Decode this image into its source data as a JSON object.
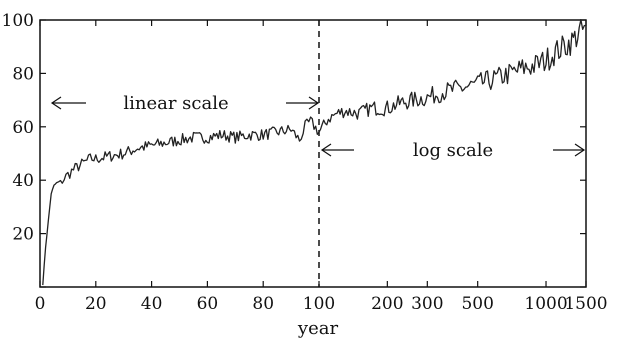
{
  "chart_data": {
    "type": "line",
    "title": "",
    "xlabel": "year",
    "ylabel": "",
    "ylim": [
      0,
      100
    ],
    "y_ticks": [
      0,
      20,
      40,
      60,
      80,
      100
    ],
    "y_tick_labels": [
      "20",
      "40",
      "60",
      "80",
      "100"
    ],
    "x_axis": {
      "scale": "linear up to 100, log from 100 to 1500",
      "split_at": 100,
      "linear_range": [
        0,
        100
      ],
      "log_range": [
        100,
        1500
      ],
      "ticks": [
        0,
        20,
        40,
        60,
        80,
        100,
        200,
        300,
        500,
        1000,
        1500
      ],
      "tick_labels": [
        "0",
        "20",
        "40",
        "60",
        "80",
        "100",
        "200",
        "300",
        "500",
        "1000",
        "1500"
      ]
    },
    "grid": false,
    "legend": "none",
    "colors": {
      "series": "#222222",
      "axes": "#111111"
    },
    "divider": {
      "x": 100,
      "style": "dashed vertical line"
    },
    "annotations": [
      {
        "text": "linear scale",
        "region": "linear",
        "arrows": "both directions"
      },
      {
        "text": "log scale",
        "region": "log",
        "arrows": "both directions"
      }
    ],
    "series": [
      {
        "x": [
          1,
          2,
          3,
          4,
          5,
          6,
          8,
          10,
          12,
          15,
          18,
          20,
          25,
          30,
          35,
          40,
          45,
          50,
          55,
          60,
          65,
          70,
          75,
          80,
          85,
          90,
          93,
          95,
          97,
          100,
          110,
          120,
          130,
          150,
          170,
          200,
          230,
          260,
          300,
          350,
          400,
          450,
          500,
          600,
          700,
          800,
          900,
          1000,
          1100,
          1200,
          1300,
          1400,
          1450,
          1500
        ],
        "y": [
          1,
          15,
          25,
          35,
          38,
          39,
          40,
          42,
          44,
          46,
          48,
          48,
          49,
          50,
          52,
          53,
          54,
          55,
          56,
          56,
          57,
          56,
          57,
          57,
          58,
          59,
          55,
          60,
          62,
          58,
          63,
          65,
          66,
          65,
          67,
          67,
          69,
          70,
          71,
          73,
          74,
          75,
          76,
          78,
          80,
          82,
          83,
          85,
          88,
          90,
          92,
          95,
          96,
          98
        ]
      }
    ]
  }
}
